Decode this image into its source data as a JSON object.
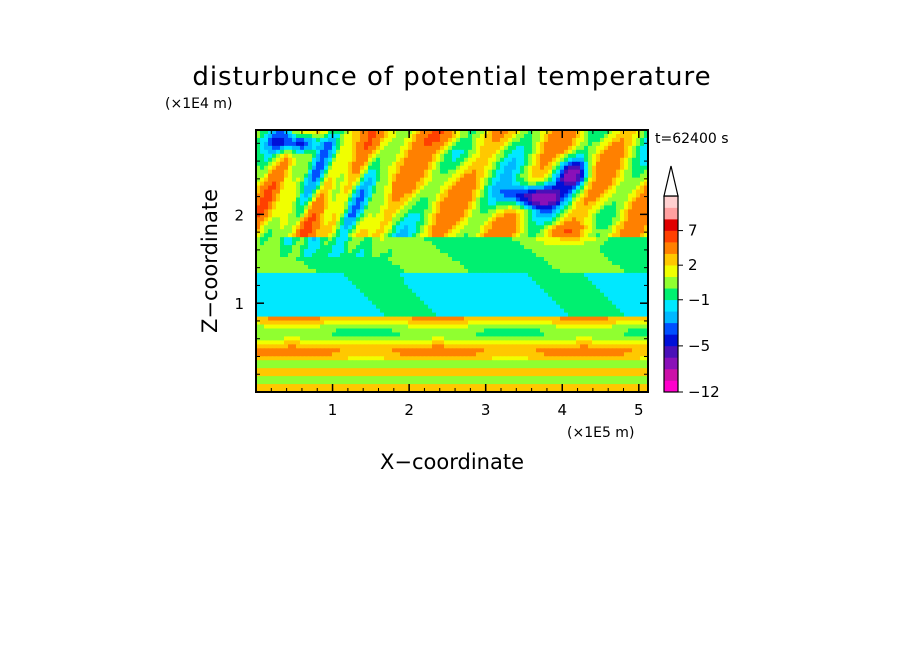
{
  "chart_data": {
    "type": "heatmap",
    "title": "disturbunce of potential temperature",
    "xlabel": "X−coordinate",
    "ylabel": "Z−coordinate",
    "x_unit": "(×1E5 m)",
    "y_unit": "(×1E4 m)",
    "time_label": "t=62400 s",
    "xlim": [
      0,
      5.12
    ],
    "ylim": [
      0,
      2.95
    ],
    "x_ticks": [
      1,
      2,
      3,
      4,
      5
    ],
    "x_tick_labels": [
      "1",
      "2",
      "3",
      "4",
      "5"
    ],
    "y_ticks": [
      1,
      2
    ],
    "y_tick_labels": [
      "1",
      "2"
    ],
    "colorbar": {
      "levels": [
        -12,
        -10,
        -8,
        -6,
        -5,
        -4,
        -3,
        -2,
        -1,
        0,
        1,
        2,
        3,
        5,
        7,
        9,
        11,
        13
      ],
      "colors": [
        "#ff00cc",
        "#cc10a8",
        "#8a10b8",
        "#4a10b8",
        "#0010d8",
        "#0050ff",
        "#00b8ff",
        "#00e8ff",
        "#00f070",
        "#90ff30",
        "#f0ff00",
        "#ffc800",
        "#ff8000",
        "#ff4000",
        "#e00000",
        "#ffa0a0",
        "#ffd0d0"
      ],
      "tick_labels": [
        "−12",
        "−5",
        "−1",
        "2",
        "7"
      ],
      "tick_values": [
        -12,
        -5,
        -1,
        2,
        7
      ],
      "extend": "max"
    }
  }
}
